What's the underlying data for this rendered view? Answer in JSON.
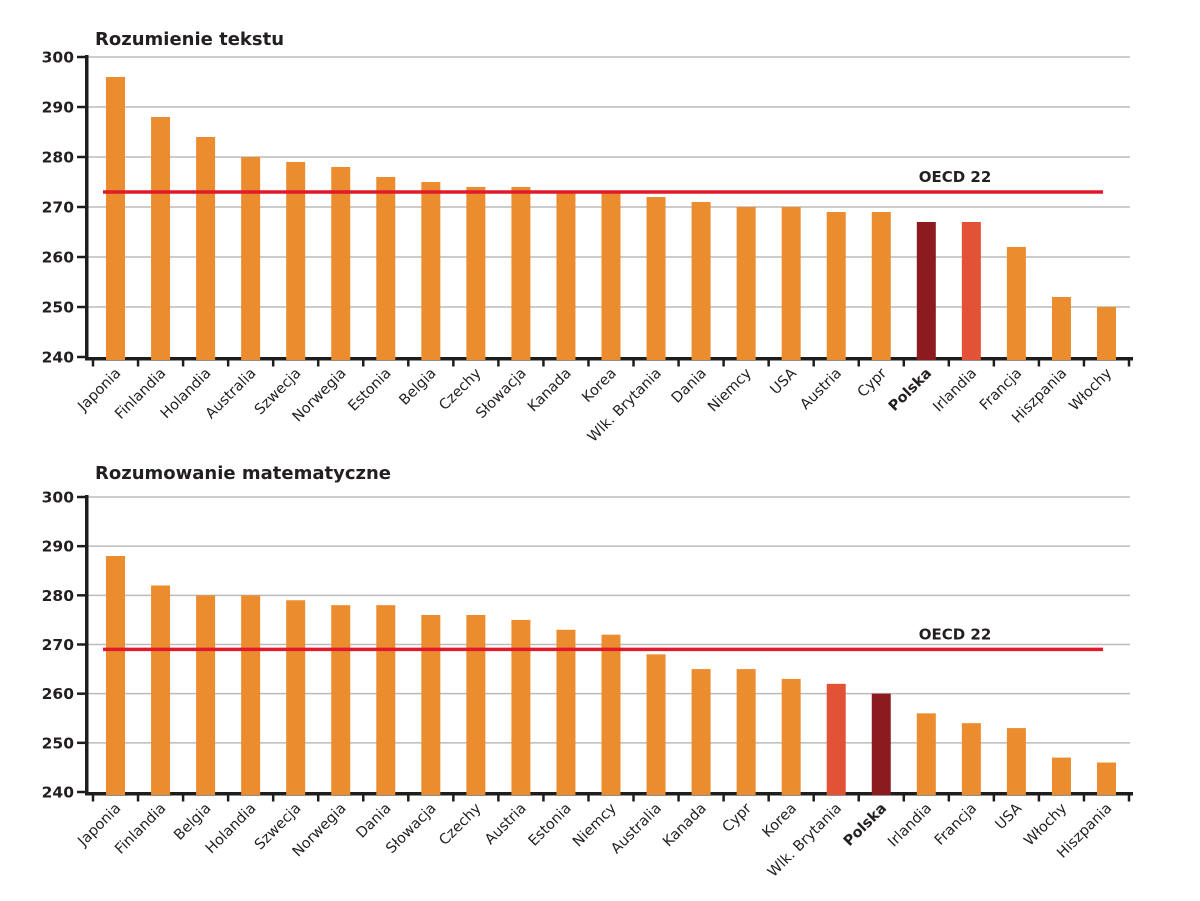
{
  "colors": {
    "bar_normal": "#EB8C2E",
    "bar_poland": "#8B1B1F",
    "bar_accent": "#E25236",
    "reference_line": "#E11A2B",
    "grid": "#BDBABA",
    "axis": "#1D1D1B",
    "text": "#231F20"
  },
  "chart_data": [
    {
      "type": "bar",
      "title": "Rozumienie tekstu",
      "xlabel": "",
      "ylabel": "",
      "ylim": [
        240,
        300
      ],
      "yticks": [
        240,
        250,
        260,
        270,
        280,
        290,
        300
      ],
      "grid": true,
      "legend": "none",
      "reference_line": {
        "label": "OECD 22",
        "value": 273
      },
      "bars": [
        {
          "label": "Japonia",
          "value": 296,
          "style": "normal"
        },
        {
          "label": "Finlandia",
          "value": 288,
          "style": "normal"
        },
        {
          "label": "Holandia",
          "value": 284,
          "style": "normal"
        },
        {
          "label": "Australia",
          "value": 280,
          "style": "normal"
        },
        {
          "label": "Szwecja",
          "value": 279,
          "style": "normal"
        },
        {
          "label": "Norwegia",
          "value": 278,
          "style": "normal"
        },
        {
          "label": "Estonia",
          "value": 276,
          "style": "normal"
        },
        {
          "label": "Belgia",
          "value": 275,
          "style": "normal"
        },
        {
          "label": "Czechy",
          "value": 274,
          "style": "normal"
        },
        {
          "label": "Słowacja",
          "value": 274,
          "style": "normal"
        },
        {
          "label": "Kanada",
          "value": 273,
          "style": "normal"
        },
        {
          "label": "Korea",
          "value": 273,
          "style": "normal"
        },
        {
          "label": "Wlk. Brytania",
          "value": 272,
          "style": "normal"
        },
        {
          "label": "Dania",
          "value": 271,
          "style": "normal"
        },
        {
          "label": "Niemcy",
          "value": 270,
          "style": "normal"
        },
        {
          "label": "USA",
          "value": 270,
          "style": "normal"
        },
        {
          "label": "Austria",
          "value": 269,
          "style": "normal"
        },
        {
          "label": "Cypr",
          "value": 269,
          "style": "normal"
        },
        {
          "label": "Polska",
          "value": 267,
          "style": "poland"
        },
        {
          "label": "Irlandia",
          "value": 267,
          "style": "accent"
        },
        {
          "label": "Francja",
          "value": 262,
          "style": "normal"
        },
        {
          "label": "Hiszpania",
          "value": 252,
          "style": "normal"
        },
        {
          "label": "Włochy",
          "value": 250,
          "style": "normal"
        }
      ]
    },
    {
      "type": "bar",
      "title": "Rozumowanie matematyczne",
      "xlabel": "",
      "ylabel": "",
      "ylim": [
        240,
        300
      ],
      "yticks": [
        240,
        250,
        260,
        270,
        280,
        290,
        300
      ],
      "grid": true,
      "legend": "none",
      "reference_line": {
        "label": "OECD 22",
        "value": 269
      },
      "bars": [
        {
          "label": "Japonia",
          "value": 288,
          "style": "normal"
        },
        {
          "label": "Finlandia",
          "value": 282,
          "style": "normal"
        },
        {
          "label": "Belgia",
          "value": 280,
          "style": "normal"
        },
        {
          "label": "Holandia",
          "value": 280,
          "style": "normal"
        },
        {
          "label": "Szwecja",
          "value": 279,
          "style": "normal"
        },
        {
          "label": "Norwegia",
          "value": 278,
          "style": "normal"
        },
        {
          "label": "Dania",
          "value": 278,
          "style": "normal"
        },
        {
          "label": "Słowacja",
          "value": 276,
          "style": "normal"
        },
        {
          "label": "Czechy",
          "value": 276,
          "style": "normal"
        },
        {
          "label": "Austria",
          "value": 275,
          "style": "normal"
        },
        {
          "label": "Estonia",
          "value": 273,
          "style": "normal"
        },
        {
          "label": "Niemcy",
          "value": 272,
          "style": "normal"
        },
        {
          "label": "Australia",
          "value": 268,
          "style": "normal"
        },
        {
          "label": "Kanada",
          "value": 265,
          "style": "normal"
        },
        {
          "label": "Cypr",
          "value": 265,
          "style": "normal"
        },
        {
          "label": "Korea",
          "value": 263,
          "style": "normal"
        },
        {
          "label": "Wlk. Brytania",
          "value": 262,
          "style": "accent"
        },
        {
          "label": "Polska",
          "value": 260,
          "style": "poland"
        },
        {
          "label": "Irlandia",
          "value": 256,
          "style": "normal"
        },
        {
          "label": "Francja",
          "value": 254,
          "style": "normal"
        },
        {
          "label": "USA",
          "value": 253,
          "style": "normal"
        },
        {
          "label": "Włochy",
          "value": 247,
          "style": "normal"
        },
        {
          "label": "Hiszpania",
          "value": 246,
          "style": "normal"
        }
      ]
    }
  ]
}
